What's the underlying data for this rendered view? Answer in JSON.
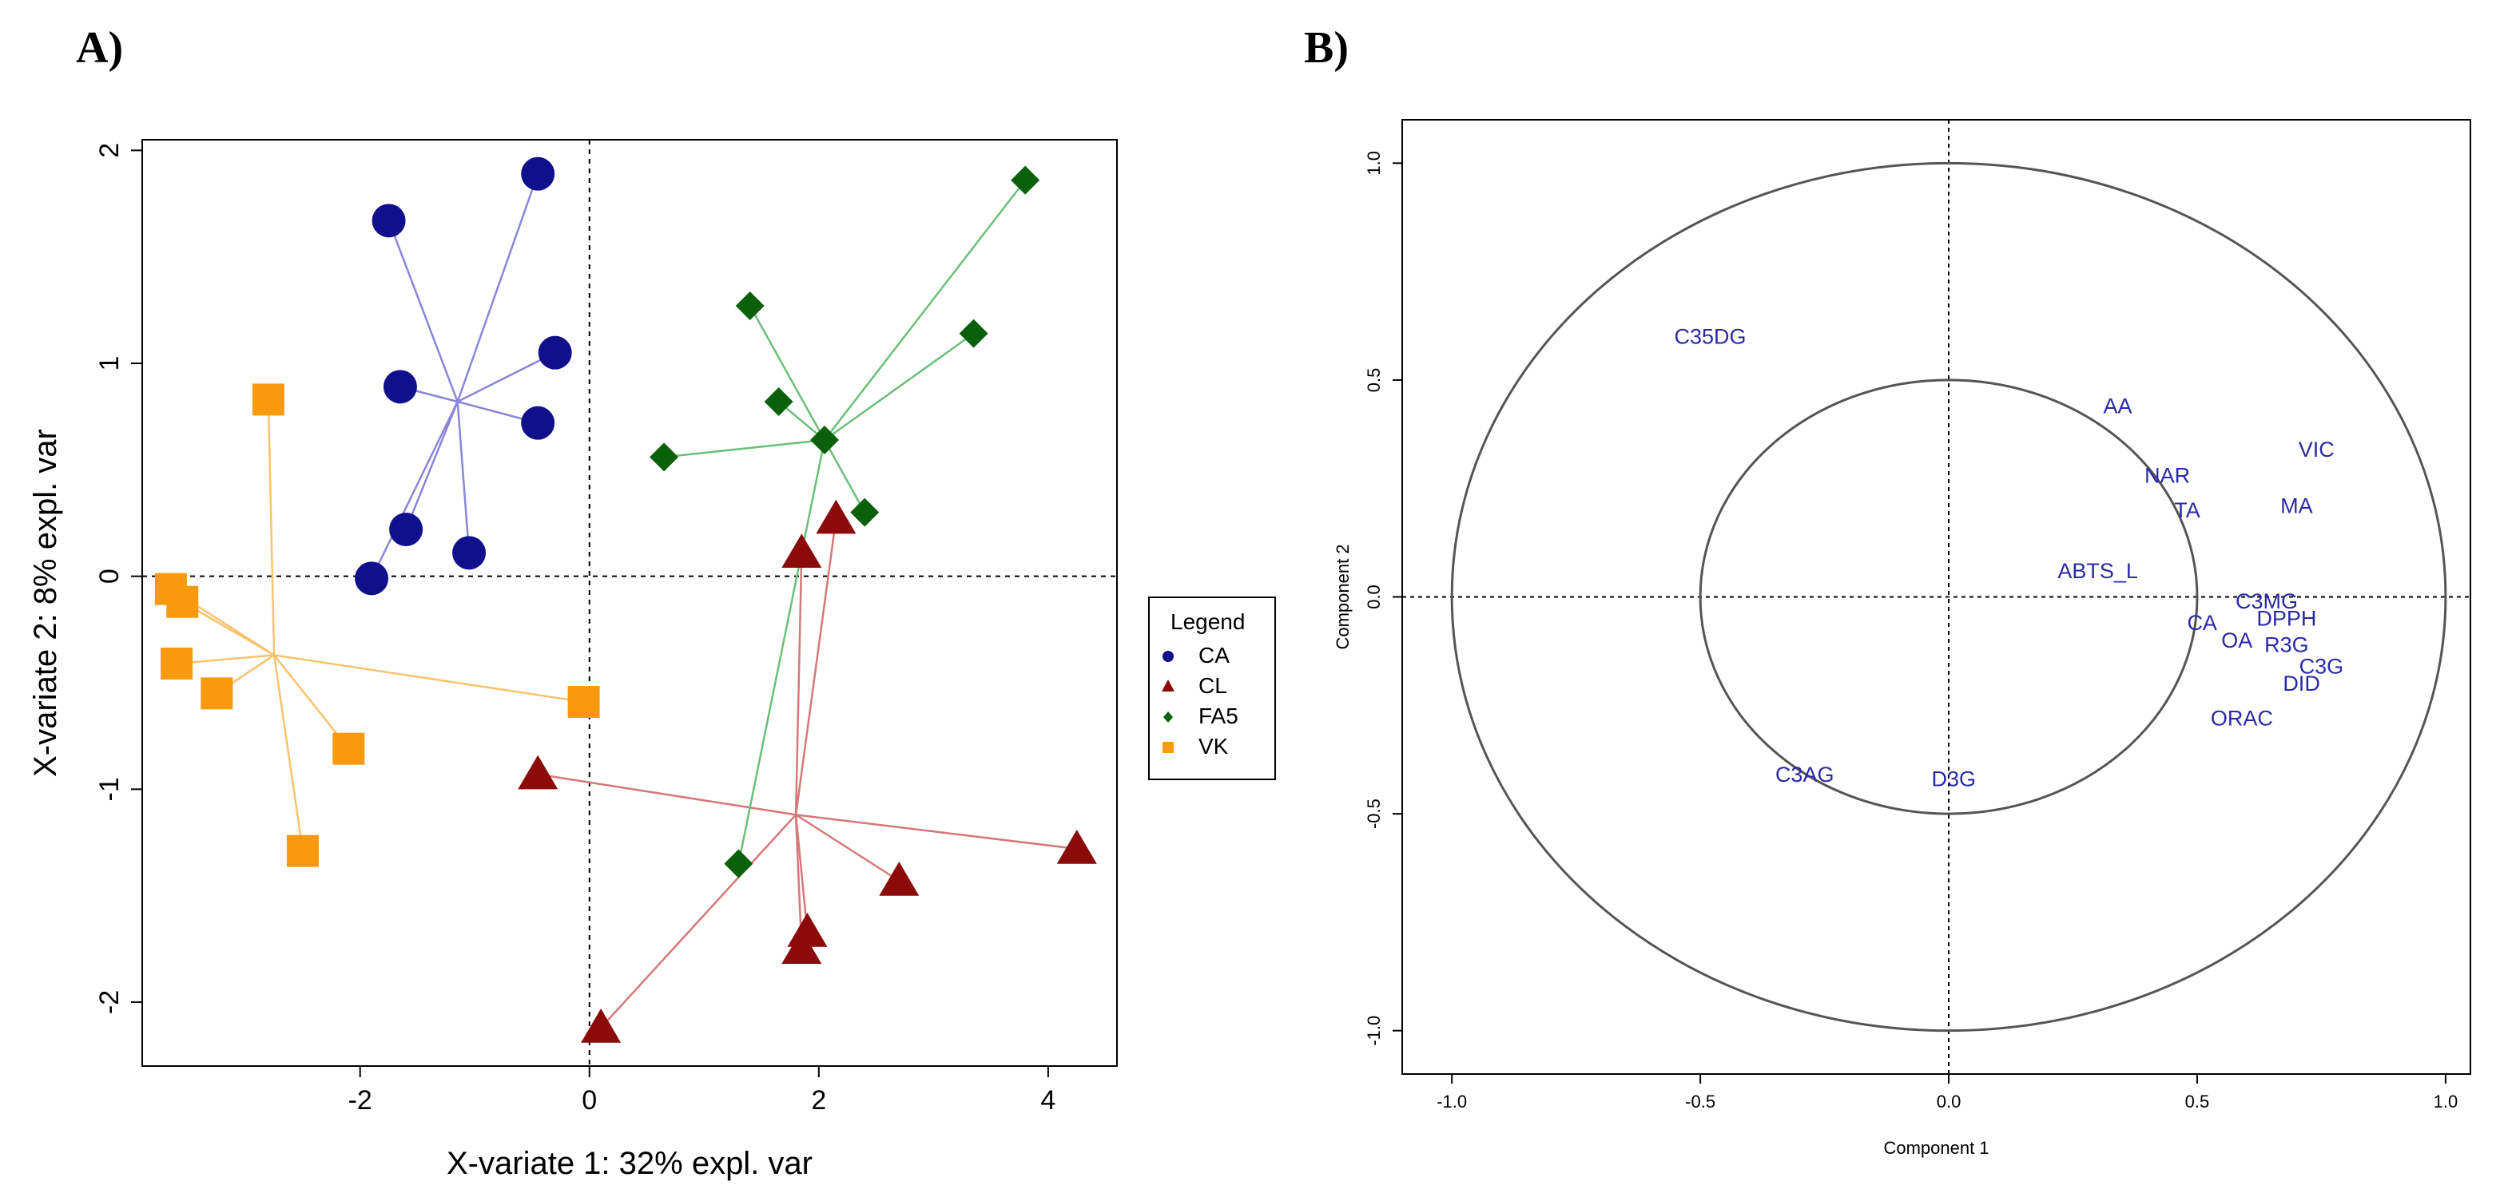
{
  "panels": {
    "a_label": "A)",
    "b_label": "B)"
  },
  "chart_data": [
    {
      "type": "scatter",
      "panel": "A)",
      "title": "",
      "xlabel": "X-variate 1: 32% expl. var",
      "ylabel": "X-variate 2: 8% expl. var",
      "xlim": [
        -3.9,
        4.6
      ],
      "ylim": [
        -2.3,
        2.05
      ],
      "xticks": [
        -2,
        0,
        2,
        4
      ],
      "yticks": [
        -2,
        -1,
        0,
        1,
        2
      ],
      "reference_lines": {
        "x": 0,
        "y": 0
      },
      "legend": {
        "title": "Legend",
        "position": "right"
      },
      "series": [
        {
          "name": "CA",
          "color": "#10108c",
          "marker": "circle",
          "centroid": [
            -1.15,
            0.82
          ],
          "points": [
            [
              -0.45,
              1.89
            ],
            [
              -1.75,
              1.67
            ],
            [
              -0.3,
              1.05
            ],
            [
              -1.65,
              0.89
            ],
            [
              -0.45,
              0.72
            ],
            [
              -1.6,
              0.22
            ],
            [
              -1.05,
              0.11
            ],
            [
              -1.9,
              -0.01
            ]
          ]
        },
        {
          "name": "CL",
          "color": "#8b0a0a",
          "marker": "triangle",
          "centroid": [
            1.8,
            -1.12
          ],
          "points": [
            [
              2.15,
              0.27
            ],
            [
              1.85,
              0.11
            ],
            [
              -0.45,
              -0.93
            ],
            [
              4.25,
              -1.28
            ],
            [
              2.7,
              -1.43
            ],
            [
              1.9,
              -1.67
            ],
            [
              1.85,
              -1.75
            ],
            [
              0.1,
              -2.12
            ]
          ]
        },
        {
          "name": "FA5",
          "color": "#0b600b",
          "marker": "diamond",
          "centroid": [
            2.05,
            0.64
          ],
          "points": [
            [
              3.8,
              1.86
            ],
            [
              1.4,
              1.27
            ],
            [
              3.35,
              1.14
            ],
            [
              1.65,
              0.82
            ],
            [
              2.05,
              0.64
            ],
            [
              0.65,
              0.56
            ],
            [
              2.4,
              0.3
            ],
            [
              1.3,
              -1.35
            ]
          ]
        },
        {
          "name": "VK",
          "color": "#f79a10",
          "marker": "square",
          "centroid": [
            -2.75,
            -0.37
          ],
          "points": [
            [
              -2.8,
              0.83
            ],
            [
              -3.65,
              -0.06
            ],
            [
              -3.55,
              -0.12
            ],
            [
              -3.6,
              -0.41
            ],
            [
              -3.25,
              -0.55
            ],
            [
              -0.05,
              -0.59
            ],
            [
              -2.1,
              -0.81
            ],
            [
              -2.5,
              -1.29
            ]
          ]
        }
      ]
    },
    {
      "type": "scatter",
      "panel": "B)",
      "title": "",
      "xlabel": "Component 1",
      "ylabel": "Component 2",
      "xlim": [
        -1.1,
        1.05
      ],
      "ylim": [
        -1.1,
        1.1
      ],
      "xticks": [
        "-1.0",
        "-0.5",
        "0.0",
        "0.5",
        "1.0"
      ],
      "yticks": [
        "-1.0",
        "-0.5",
        "0.0",
        "0.5",
        "1.0"
      ],
      "circles": [
        1.0,
        0.5
      ],
      "reference_lines": {
        "x": 0,
        "y": 0
      },
      "variables": [
        {
          "label": "C35DG",
          "x": -0.48,
          "y": 0.6
        },
        {
          "label": "AA",
          "x": 0.34,
          "y": 0.44
        },
        {
          "label": "VIC",
          "x": 0.74,
          "y": 0.34
        },
        {
          "label": "NAR",
          "x": 0.44,
          "y": 0.28
        },
        {
          "label": "MA",
          "x": 0.7,
          "y": 0.21
        },
        {
          "label": "TA",
          "x": 0.48,
          "y": 0.2
        },
        {
          "label": "ABTS_L",
          "x": 0.3,
          "y": 0.06
        },
        {
          "label": "C3MG",
          "x": 0.64,
          "y": -0.01
        },
        {
          "label": "CA",
          "x": 0.51,
          "y": -0.06
        },
        {
          "label": "DPPH",
          "x": 0.68,
          "y": -0.05
        },
        {
          "label": "OA",
          "x": 0.58,
          "y": -0.1
        },
        {
          "label": "R3G",
          "x": 0.68,
          "y": -0.11
        },
        {
          "label": "C3G",
          "x": 0.75,
          "y": -0.16
        },
        {
          "label": "DID",
          "x": 0.71,
          "y": -0.2
        },
        {
          "label": "ORAC",
          "x": 0.59,
          "y": -0.28
        },
        {
          "label": "C3AG",
          "x": -0.29,
          "y": -0.41
        },
        {
          "label": "D3G",
          "x": 0.01,
          "y": -0.42
        }
      ]
    }
  ]
}
